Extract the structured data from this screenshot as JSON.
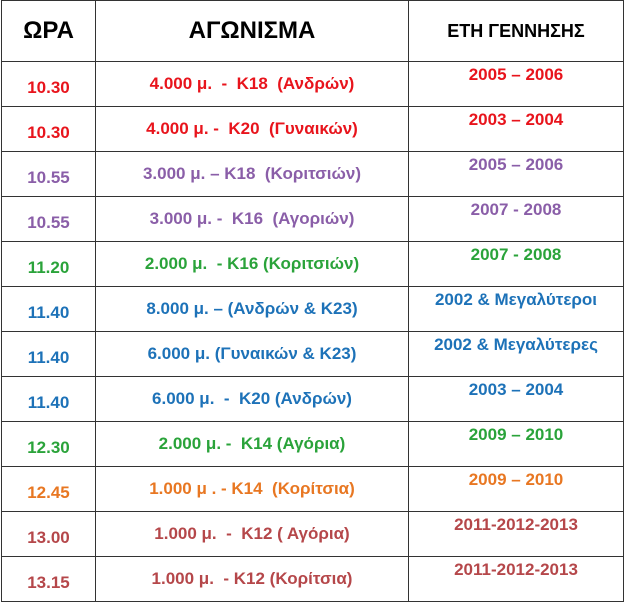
{
  "table": {
    "header": [
      "ΩΡΑ",
      "ΑΓΩΝΙΣΜΑ",
      "ΕΤΗ ΓΕΝΝΗΣΗΣ"
    ],
    "rows": [
      {
        "time": "10.30",
        "event": "4.000 μ.  -  Κ18  (Ανδρών)",
        "years": "2005 – 2006",
        "color": "#e8141c"
      },
      {
        "time": "10.30",
        "event": "4.000 μ. -  Κ20  (Γυναικών)",
        "years": "2003 – 2004",
        "color": "#e8141c"
      },
      {
        "time": "10.55",
        "event": "3.000 μ. – Κ18  (Κοριτσιών)",
        "years": "2005 – 2006",
        "color": "#8a5ea8"
      },
      {
        "time": "10.55",
        "event": "3.000 μ. -  Κ16  (Αγοριών)",
        "years": "2007 - 2008",
        "color": "#8a5ea8"
      },
      {
        "time": "11.20",
        "event": "2.000 μ.  - Κ16 (Κοριτσιών)",
        "years": "2007 - 2008",
        "color": "#2aa33a"
      },
      {
        "time": "11.40",
        "event": "8.000 μ. – (Ανδρών & Κ23)",
        "years": "2002 & Μεγαλύτεροι",
        "color": "#1d72b8"
      },
      {
        "time": "11.40",
        "event": "6.000 μ. (Γυναικών & Κ23)",
        "years": "2002 & Μεγαλύτερες",
        "color": "#1d72b8"
      },
      {
        "time": "11.40",
        "event": "6.000 μ.  -  Κ20 (Ανδρών)",
        "years": "2003 – 2004",
        "color": "#1d72b8"
      },
      {
        "time": "12.30",
        "event": "2.000 μ. -  Κ14 (Αγόρια)",
        "years": "2009 – 2010",
        "color": "#2aa33a"
      },
      {
        "time": "12.45",
        "event": "1.000 μ . - Κ14  (Κορίτσια)",
        "years": "2009 – 2010",
        "color": "#e87722"
      },
      {
        "time": "13.00",
        "event": "1.000 μ.  -  Κ12 ( Αγόρια)",
        "years": "2011-2012-2013",
        "color": "#b5474a"
      },
      {
        "time": "13.15",
        "event": "1.000 μ.  - Κ12 (Κορίτσια)",
        "years": "2011-2012-2013",
        "color": "#b5474a"
      }
    ]
  }
}
